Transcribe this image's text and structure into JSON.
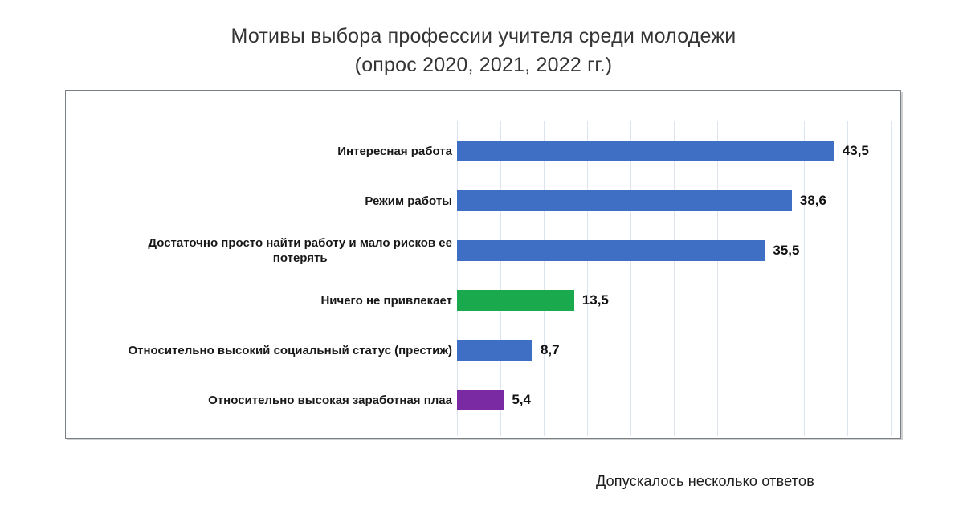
{
  "title": {
    "line1": "Мотивы выбора профессии учителя среди молодежи",
    "line2": "(опрос 2020, 2021, 2022 гг.)"
  },
  "footnote": "Допускалось несколько ответов",
  "colors": {
    "bar_blue": "#3E6FC4",
    "bar_green": "#1BA94E",
    "bar_purple": "#7A2BA4",
    "gridline": "#DDE3EF",
    "plot_border": "#7A8088",
    "title_text": "#343434",
    "label_text": "#181818"
  },
  "chart_data": {
    "type": "bar",
    "orientation": "horizontal",
    "title": "Мотивы выбора профессии учителя среди молодежи (опрос 2020, 2021, 2022 гг.)",
    "categories": [
      "Интересная работа",
      "Режим работы",
      "Достаточно просто найти работу и мало рисков ее\nпотерять",
      "Ничего не привлекает",
      "Относительно высокий социальный статус (престиж)",
      "Относительно высокая заработная плаа"
    ],
    "values": [
      43.5,
      38.6,
      35.5,
      13.5,
      8.7,
      5.4
    ],
    "value_labels": [
      "43,5",
      "38,6",
      "35,5",
      "13,5",
      "8,7",
      "5,4"
    ],
    "bar_colors": [
      "#3E6FC4",
      "#3E6FC4",
      "#3E6FC4",
      "#1BA94E",
      "#3E6FC4",
      "#7A2BA4"
    ],
    "xlabel": "",
    "ylabel": "",
    "xlim": [
      0,
      50
    ],
    "gridline_step": 5,
    "grid": "vertical",
    "tick_labels": "none",
    "legend": "none",
    "annotation": "Допускалось несколько ответов"
  }
}
